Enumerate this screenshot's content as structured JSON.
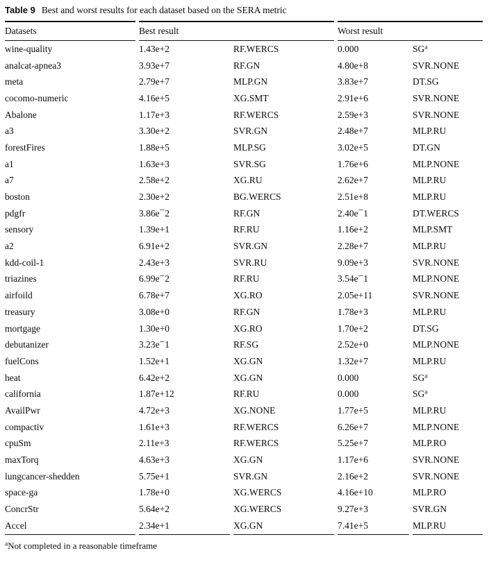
{
  "colors": {
    "background": "#ffffff",
    "text": "#0b0b0b",
    "rule": "#111111"
  },
  "caption": {
    "label": "Table 9",
    "text": "Best and worst results for each dataset based on the SERA metric"
  },
  "table": {
    "columns": {
      "datasets": "Datasets",
      "best": "Best result",
      "worst": "Worst result"
    },
    "rows": [
      {
        "dataset": "wine-quality",
        "best_value": "1.43e+2",
        "best_method": "RF.WERCS",
        "worst_value": "0.000",
        "worst_method": "SG^a"
      },
      {
        "dataset": "analcat-apnea3",
        "best_value": "3.93e+7",
        "best_method": "RF.GN",
        "worst_value": "4.80e+8",
        "worst_method": "SVR.NONE"
      },
      {
        "dataset": "meta",
        "best_value": "2.79e+7",
        "best_method": "MLP.GN",
        "worst_value": "3.83e+7",
        "worst_method": "DT.SG"
      },
      {
        "dataset": "cocomo-numeric",
        "best_value": "4.16e+5",
        "best_method": "XG.SMT",
        "worst_value": "2.91e+6",
        "worst_method": "SVR.NONE"
      },
      {
        "dataset": "Abalone",
        "best_value": "1.17e+3",
        "best_method": "RF.WERCS",
        "worst_value": "2.59e+3",
        "worst_method": "SVR.NONE"
      },
      {
        "dataset": "a3",
        "best_value": "3.30e+2",
        "best_method": "SVR.GN",
        "worst_value": "2.48e+7",
        "worst_method": "MLP.RU"
      },
      {
        "dataset": "forestFires",
        "best_value": "1.88e+5",
        "best_method": "MLP.SG",
        "worst_value": "3.02e+5",
        "worst_method": "DT.GN"
      },
      {
        "dataset": "a1",
        "best_value": "1.63e+3",
        "best_method": "SVR.SG",
        "worst_value": "1.76e+6",
        "worst_method": "MLP.NONE"
      },
      {
        "dataset": "a7",
        "best_value": "2.58e+2",
        "best_method": "XG.RU",
        "worst_value": "2.62e+7",
        "worst_method": "MLP.RU"
      },
      {
        "dataset": "boston",
        "best_value": "2.30e+2",
        "best_method": "BG.WERCS",
        "worst_value": "2.51e+8",
        "worst_method": "MLP.RU"
      },
      {
        "dataset": "pdgfr",
        "best_value": "3.86e-2",
        "best_method": "RF.GN",
        "worst_value": "2.40e-1",
        "worst_method": "DT.WERCS"
      },
      {
        "dataset": "sensory",
        "best_value": "1.39e+1",
        "best_method": "RF.RU",
        "worst_value": "1.16e+2",
        "worst_method": "MLP.SMT"
      },
      {
        "dataset": "a2",
        "best_value": "6.91e+2",
        "best_method": "SVR.GN",
        "worst_value": "2.28e+7",
        "worst_method": "MLP.RU"
      },
      {
        "dataset": "kdd-coil-1",
        "best_value": "2.43e+3",
        "best_method": "SVR.RU",
        "worst_value": "9.09e+3",
        "worst_method": "SVR.NONE"
      },
      {
        "dataset": "triazines",
        "best_value": "6.99e-2",
        "best_method": "RF.RU",
        "worst_value": "3.54e-1",
        "worst_method": "MLP.NONE"
      },
      {
        "dataset": "airfoild",
        "best_value": "6.78e+7",
        "best_method": "XG.RO",
        "worst_value": "2.05e+11",
        "worst_method": "SVR.NONE"
      },
      {
        "dataset": "treasury",
        "best_value": "3.08e+0",
        "best_method": "RF.GN",
        "worst_value": "1.78e+3",
        "worst_method": "MLP.RU"
      },
      {
        "dataset": "mortgage",
        "best_value": "1.30e+0",
        "best_method": "XG.RO",
        "worst_value": "1.70e+2",
        "worst_method": "DT.SG"
      },
      {
        "dataset": "debutanizer",
        "best_value": "3.23e-1",
        "best_method": "RF.SG",
        "worst_value": "2.52e+0",
        "worst_method": "MLP.NONE"
      },
      {
        "dataset": "fuelCons",
        "best_value": "1.52e+1",
        "best_method": "XG.GN",
        "worst_value": "1.32e+7",
        "worst_method": "MLP.RU"
      },
      {
        "dataset": "heat",
        "best_value": "6.42e+2",
        "best_method": "XG.GN",
        "worst_value": "0.000",
        "worst_method": "SG^a"
      },
      {
        "dataset": "california",
        "best_value": "1.87e+12",
        "best_method": "RF.RU",
        "worst_value": "0.000",
        "worst_method": "SG^a"
      },
      {
        "dataset": "AvailPwr",
        "best_value": "4.72e+3",
        "best_method": "XG.NONE",
        "worst_value": "1.77e+5",
        "worst_method": "MLP.RU"
      },
      {
        "dataset": "compactiv",
        "best_value": "1.61e+3",
        "best_method": "RF.WERCS",
        "worst_value": "6.26e+7",
        "worst_method": "MLP.NONE"
      },
      {
        "dataset": "cpuSm",
        "best_value": "2.11e+3",
        "best_method": "RF.WERCS",
        "worst_value": "5.25e+7",
        "worst_method": "MLP.RO"
      },
      {
        "dataset": "maxTorq",
        "best_value": "4.63e+3",
        "best_method": "XG.GN",
        "worst_value": "1.17e+6",
        "worst_method": "SVR.NONE"
      },
      {
        "dataset": "lungcancer-shedden",
        "best_value": "5.75e+1",
        "best_method": "SVR.GN",
        "worst_value": "2.16e+2",
        "worst_method": "SVR.NONE"
      },
      {
        "dataset": "space-ga",
        "best_value": "1.78e+0",
        "best_method": "XG.WERCS",
        "worst_value": "4.16e+10",
        "worst_method": "MLP.RO"
      },
      {
        "dataset": "ConcrStr",
        "best_value": "5.64e+2",
        "best_method": "XG.WERCS",
        "worst_value": "9.27e+3",
        "worst_method": "SVR.GN"
      },
      {
        "dataset": "Accel",
        "best_value": "2.34e+1",
        "best_method": "XG.GN",
        "worst_value": "7.41e+5",
        "worst_method": "MLP.RU"
      }
    ]
  },
  "footnote": {
    "marker": "a",
    "text": "Not completed in a reasonable timeframe"
  }
}
